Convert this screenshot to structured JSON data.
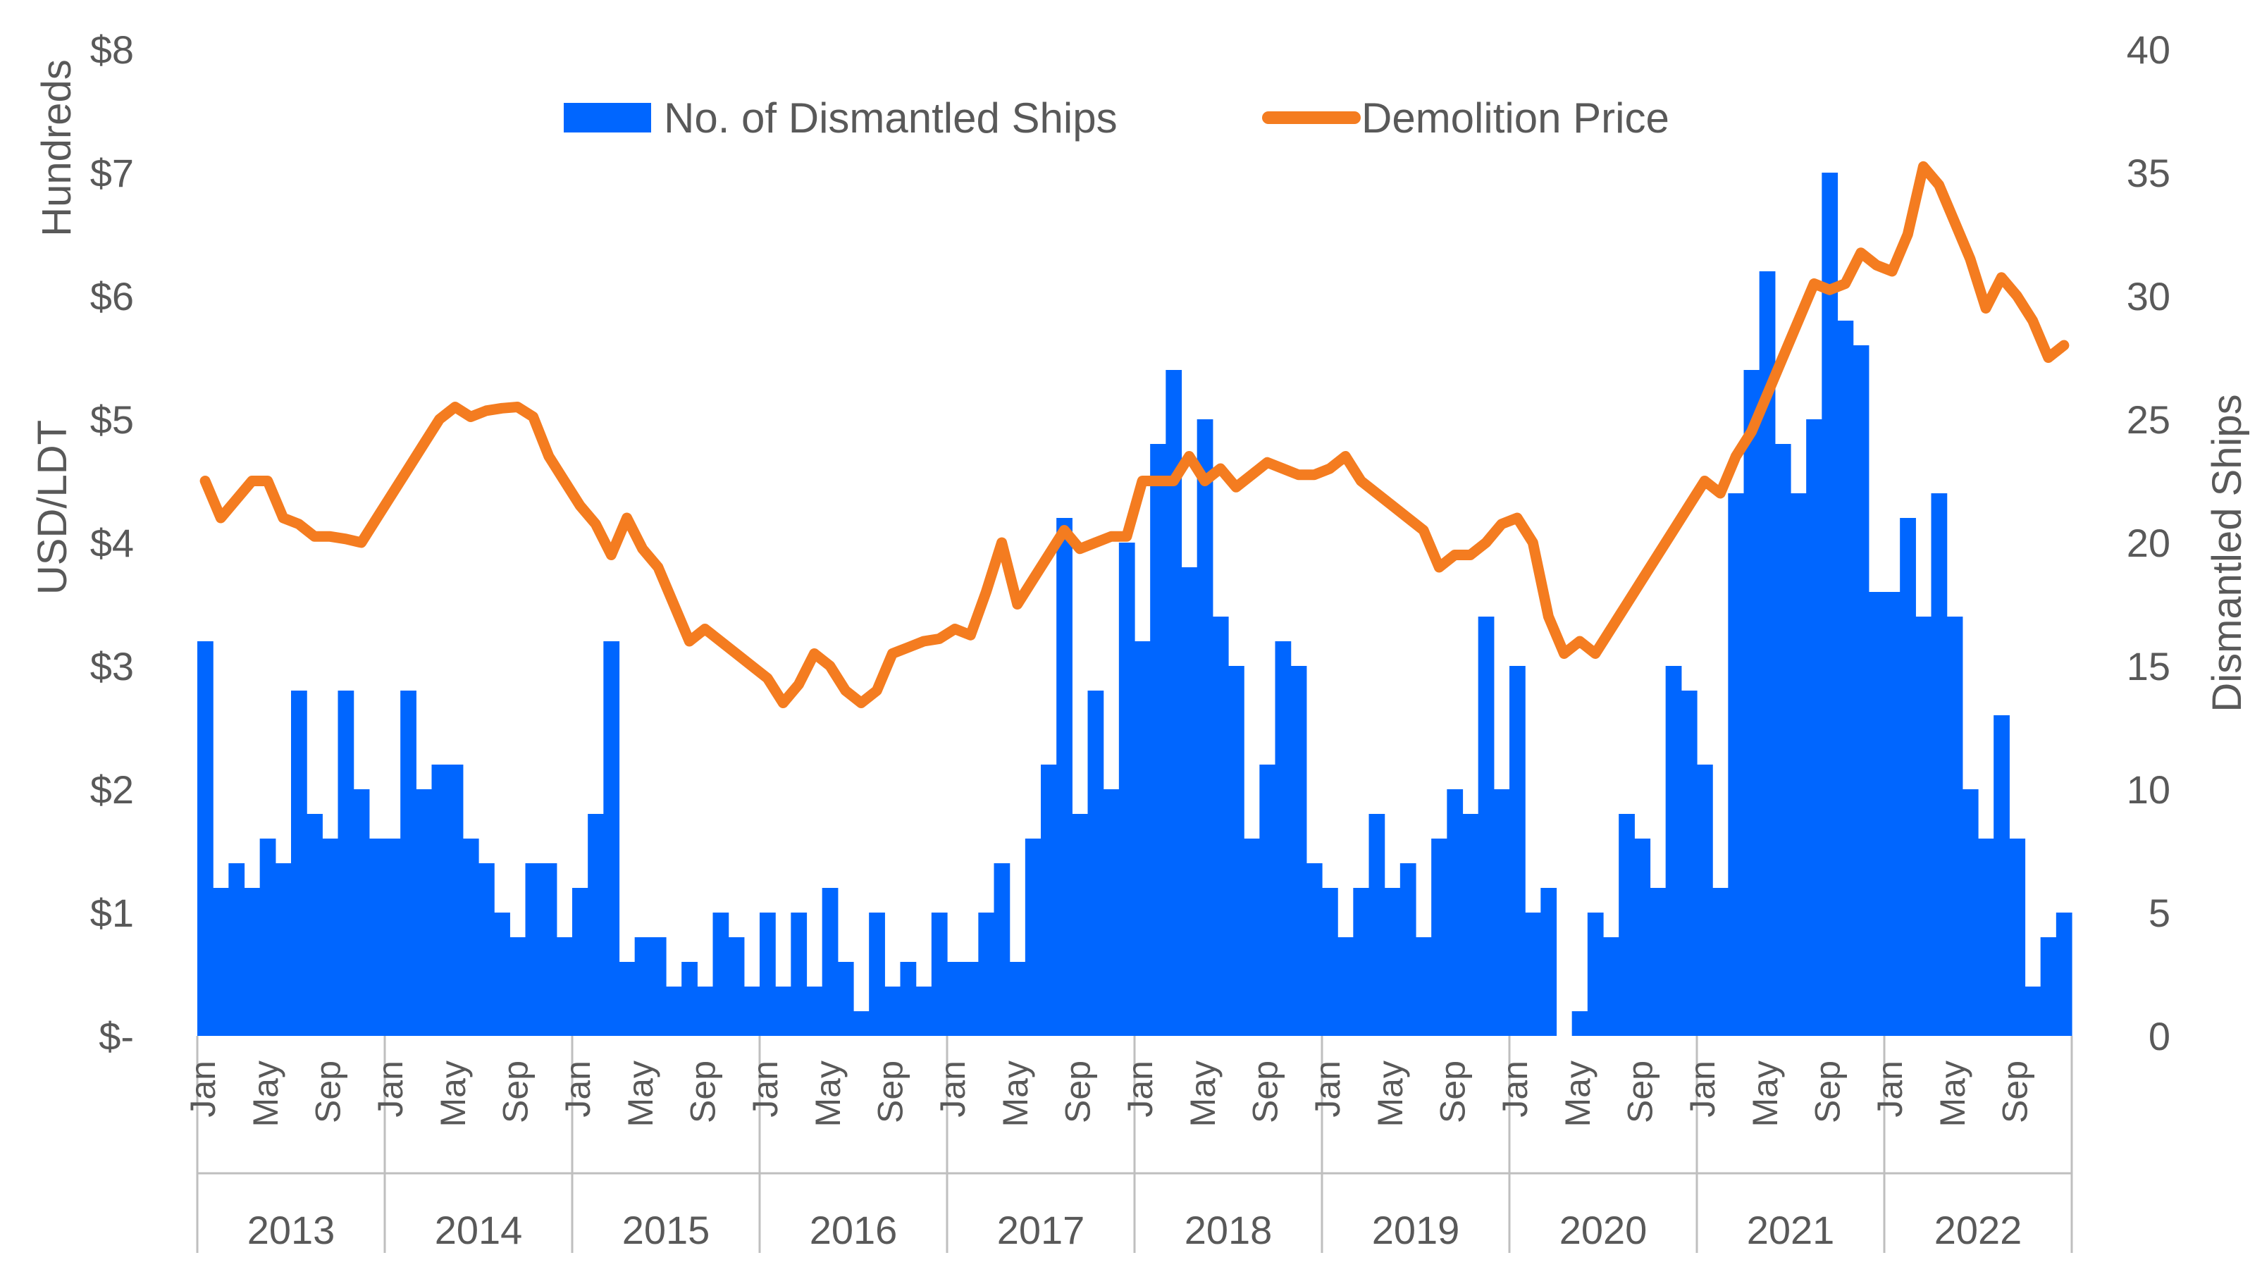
{
  "chart_data": {
    "type": "bar+line",
    "title": "",
    "legend": {
      "position": "top",
      "entries": [
        {
          "label": "No. of Dismantled Ships",
          "color": "#0066ff",
          "kind": "bar"
        },
        {
          "label": "Demolition Price",
          "color": "#f47c20",
          "kind": "line"
        }
      ]
    },
    "y_left": {
      "title": "USD/LDT",
      "unit_label": "Hundreds",
      "range": [
        0,
        8
      ],
      "tick_values": [
        0,
        1,
        2,
        3,
        4,
        5,
        6,
        7,
        8
      ],
      "tick_labels": [
        "$-",
        "$1",
        "$2",
        "$3",
        "$4",
        "$5",
        "$6",
        "$7",
        "$8"
      ]
    },
    "y_right": {
      "title": "Dismantled Ships",
      "range": [
        0,
        40
      ],
      "tick_values": [
        0,
        5,
        10,
        15,
        20,
        25,
        30,
        35,
        40
      ],
      "tick_labels": [
        "0",
        "5",
        "10",
        "15",
        "20",
        "25",
        "30",
        "35",
        "40"
      ]
    },
    "x": {
      "years": [
        "2013",
        "2014",
        "2015",
        "2016",
        "2017",
        "2018",
        "2019",
        "2020",
        "2021",
        "2022"
      ],
      "month_labels": [
        {
          "index": 0,
          "label": "Jan"
        },
        {
          "index": 4,
          "label": "May"
        },
        {
          "index": 8,
          "label": "Sep"
        }
      ],
      "months_per_year": 12
    },
    "series": [
      {
        "name": "No. of Dismantled Ships",
        "type": "bar",
        "axis": "right",
        "color": "#0066ff",
        "values": [
          16,
          6,
          7,
          6,
          8,
          7,
          14,
          9,
          8,
          14,
          10,
          8,
          8,
          14,
          10,
          11,
          11,
          8,
          7,
          5,
          4,
          7,
          7,
          4,
          6,
          9,
          16,
          3,
          4,
          4,
          2,
          3,
          2,
          5,
          4,
          2,
          5,
          2,
          5,
          2,
          6,
          3,
          1,
          5,
          2,
          3,
          2,
          5,
          3,
          3,
          5,
          7,
          3,
          8,
          11,
          21,
          9,
          14,
          10,
          20,
          16,
          24,
          27,
          19,
          25,
          17,
          15,
          8,
          11,
          16,
          15,
          7,
          6,
          4,
          6,
          9,
          6,
          7,
          4,
          8,
          10,
          9,
          17,
          10,
          15,
          5,
          6,
          0,
          1,
          5,
          4,
          9,
          8,
          6,
          15,
          14,
          11,
          6,
          22,
          27,
          31,
          24,
          22,
          25,
          35,
          29,
          28,
          18,
          18,
          21,
          17,
          22,
          17,
          10,
          8,
          13,
          8,
          2,
          4,
          5
        ]
      },
      {
        "name": "Demolition Price",
        "type": "line",
        "axis": "left",
        "color": "#f47c20",
        "values": [
          4.5,
          4.2,
          4.35,
          4.5,
          4.5,
          4.2,
          4.15,
          4.05,
          4.05,
          4.03,
          4.0,
          4.2,
          4.4,
          4.6,
          4.8,
          5.0,
          5.1,
          5.02,
          5.07,
          5.09,
          5.1,
          5.02,
          4.7,
          4.5,
          4.3,
          4.15,
          3.9,
          4.2,
          3.95,
          3.8,
          3.5,
          3.2,
          3.3,
          3.2,
          3.1,
          3.0,
          2.9,
          2.7,
          2.85,
          3.1,
          3.0,
          2.8,
          2.7,
          2.8,
          3.1,
          3.15,
          3.2,
          3.22,
          3.3,
          3.25,
          3.6,
          4.0,
          3.5,
          3.7,
          3.9,
          4.1,
          3.95,
          4.0,
          4.05,
          4.05,
          4.5,
          4.5,
          4.5,
          4.7,
          4.5,
          4.6,
          4.45,
          4.55,
          4.65,
          4.6,
          4.55,
          4.55,
          4.6,
          4.7,
          4.5,
          4.4,
          4.3,
          4.2,
          4.1,
          3.8,
          3.9,
          3.9,
          4.0,
          4.15,
          4.2,
          4.0,
          3.4,
          3.1,
          3.2,
          3.1,
          3.3,
          3.5,
          3.7,
          3.9,
          4.1,
          4.3,
          4.5,
          4.4,
          4.7,
          4.9,
          5.2,
          5.5,
          5.8,
          6.1,
          6.05,
          6.1,
          6.35,
          6.25,
          6.2,
          6.5,
          7.05,
          6.9,
          6.6,
          6.3,
          5.9,
          6.15,
          6.0,
          5.8,
          5.5,
          5.6
        ]
      }
    ]
  }
}
